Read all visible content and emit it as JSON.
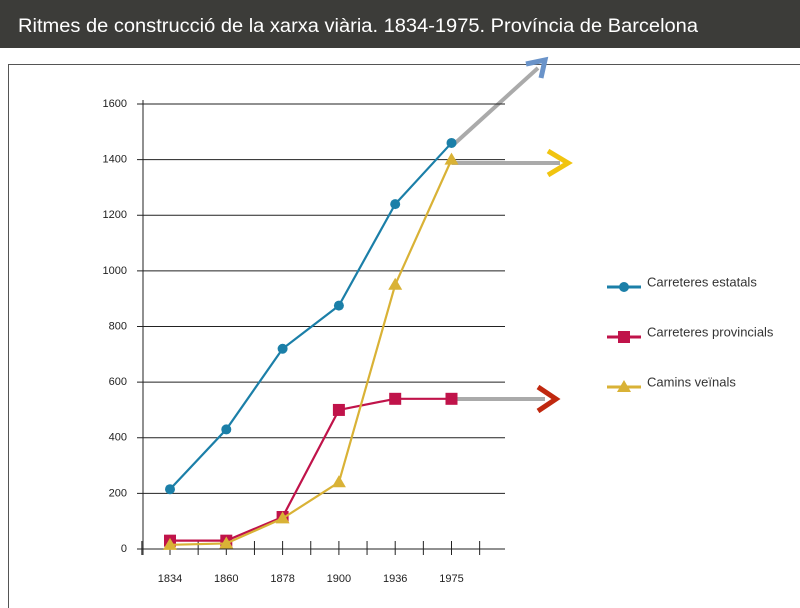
{
  "chart_data": {
    "type": "line",
    "title": "Ritmes de construcció de la xarxa viària. 1834-1975. Província de Barcelona",
    "categories": [
      "1834",
      "1860",
      "1878",
      "1900",
      "1936",
      "1975"
    ],
    "series": [
      {
        "name": "Carreteres estatals",
        "color": "#1b7fa8",
        "marker": "circle",
        "values": [
          215,
          430,
          720,
          875,
          1240,
          1460
        ]
      },
      {
        "name": "Carreteres provincials",
        "color": "#c0134a",
        "marker": "square",
        "values": [
          30,
          30,
          115,
          500,
          540,
          540
        ]
      },
      {
        "name": "Camins veïnals",
        "color": "#d9b236",
        "marker": "triangle",
        "values": [
          15,
          20,
          110,
          240,
          950,
          1400
        ]
      }
    ],
    "ylim": [
      0,
      1600
    ],
    "yticks": [
      0,
      200,
      400,
      600,
      800,
      1000,
      1200,
      1400,
      1600
    ],
    "grid": true
  }
}
